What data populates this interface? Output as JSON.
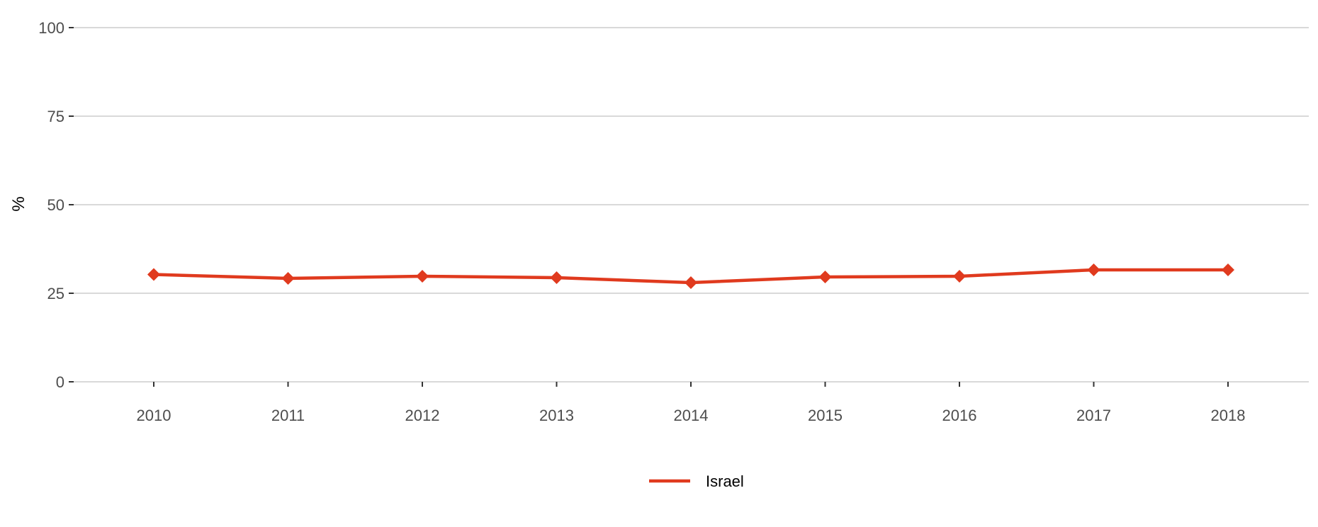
{
  "chart_data": {
    "type": "line",
    "title": "",
    "xlabel": "",
    "ylabel": "%",
    "categories": [
      "2010",
      "2011",
      "2012",
      "2013",
      "2014",
      "2015",
      "2016",
      "2017",
      "2018"
    ],
    "yticks": [
      "0",
      "25",
      "50",
      "75",
      "100"
    ],
    "ylim": [
      0,
      100
    ],
    "grid": "horizontal",
    "legend_position": "bottom",
    "series": [
      {
        "name": "Israel",
        "color": "#e03a1e",
        "marker": "diamond",
        "values": [
          30.3,
          29.2,
          29.8,
          29.4,
          28.0,
          29.6,
          29.8,
          31.6,
          31.6
        ]
      }
    ]
  }
}
